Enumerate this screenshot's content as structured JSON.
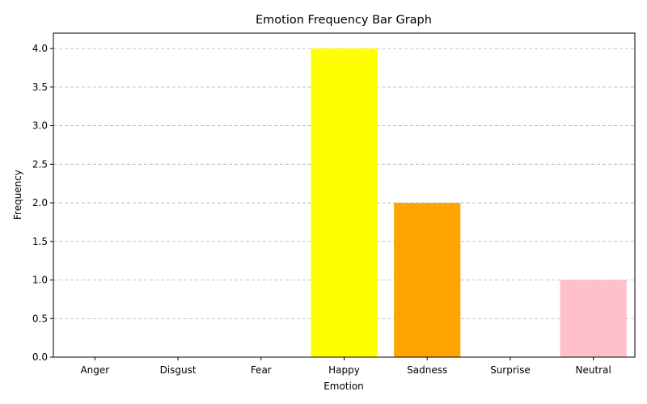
{
  "chart_data": {
    "type": "bar",
    "title": "Emotion Frequency Bar Graph",
    "xlabel": "Emotion",
    "ylabel": "Frequency",
    "categories": [
      "Anger",
      "Disgust",
      "Fear",
      "Happy",
      "Sadness",
      "Surprise",
      "Neutral"
    ],
    "values": [
      0,
      0,
      0,
      4,
      2,
      0,
      1
    ],
    "colors": [
      "#ff0000",
      "#008000",
      "#800080",
      "#ffff00",
      "#ffa500",
      "#0000ff",
      "#ffc0cb"
    ],
    "ylim": [
      0,
      4.2
    ],
    "yticks": [
      "0.0",
      "0.5",
      "1.0",
      "1.5",
      "2.0",
      "2.5",
      "3.0",
      "3.5",
      "4.0"
    ],
    "grid": "y-dashed"
  }
}
